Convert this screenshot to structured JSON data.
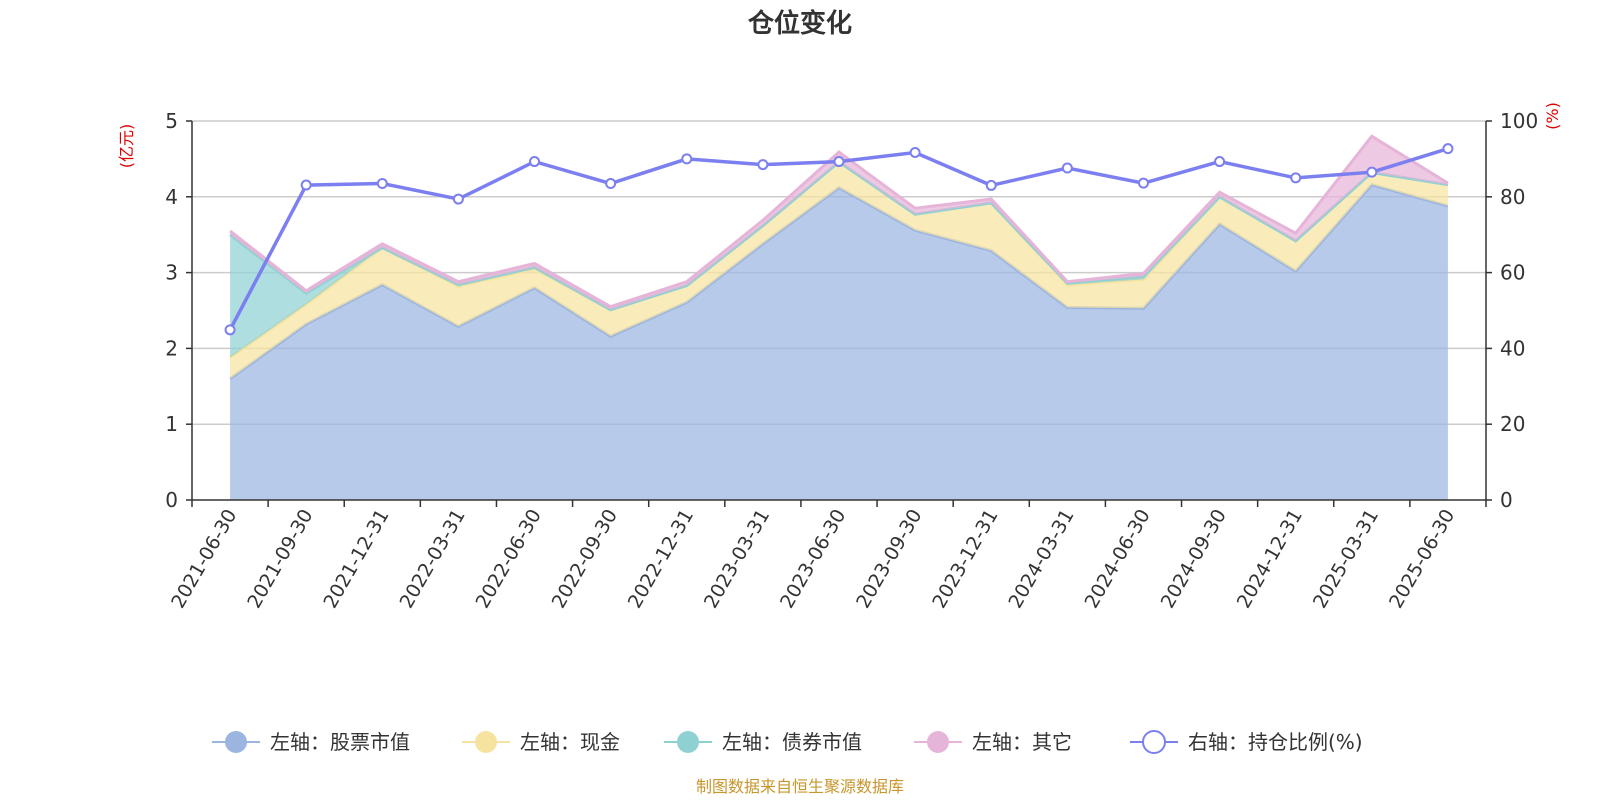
{
  "chart_data": {
    "type": "area",
    "title": "仓位变化",
    "x": [
      "2021-06-30",
      "2021-09-30",
      "2021-12-31",
      "2022-03-31",
      "2022-06-30",
      "2022-09-30",
      "2022-12-31",
      "2023-03-31",
      "2023-06-30",
      "2023-09-30",
      "2023-12-31",
      "2024-03-31",
      "2024-06-30",
      "2024-09-30",
      "2024-12-31",
      "2025-03-31",
      "2025-06-30"
    ],
    "left_axis": {
      "unit": "(亿元)",
      "ylim": [
        0,
        5
      ],
      "ticks": [
        "0",
        "1",
        "2",
        "3",
        "4",
        "5"
      ]
    },
    "right_axis": {
      "unit": "(%)",
      "ylim": [
        0,
        100
      ],
      "ticks": [
        "0",
        "20",
        "40",
        "60",
        "80",
        "100"
      ]
    },
    "series": [
      {
        "name": "左轴：股票市值",
        "axis": "left",
        "stack": true,
        "color": "#9bb5e0",
        "values": [
          1.6,
          2.32,
          2.84,
          2.29,
          2.8,
          2.16,
          2.61,
          3.38,
          4.12,
          3.56,
          3.29,
          2.54,
          2.53,
          3.64,
          3.02,
          4.16,
          3.88
        ]
      },
      {
        "name": "左轴：现金",
        "axis": "left",
        "stack": true,
        "color": "#f7e3a0",
        "values": [
          0.28,
          0.26,
          0.49,
          0.53,
          0.25,
          0.35,
          0.22,
          0.24,
          0.34,
          0.21,
          0.63,
          0.3,
          0.38,
          0.36,
          0.4,
          0.16,
          0.28
        ]
      },
      {
        "name": "左轴：债券市值",
        "axis": "left",
        "stack": true,
        "color": "#8fd1d3",
        "values": [
          1.62,
          0.15,
          0.0,
          0.02,
          0.02,
          0.0,
          0.0,
          0.0,
          0.0,
          0.0,
          0.0,
          0.02,
          0.04,
          0.0,
          0.0,
          0.0,
          0.0
        ]
      },
      {
        "name": "左轴：其它",
        "axis": "left",
        "stack": true,
        "color": "#e6b4d8",
        "values": [
          0.05,
          0.03,
          0.05,
          0.04,
          0.05,
          0.04,
          0.05,
          0.07,
          0.13,
          0.08,
          0.05,
          0.02,
          0.04,
          0.06,
          0.1,
          0.48,
          0.02
        ]
      },
      {
        "name": "右轴：持仓比例(%)",
        "axis": "right",
        "stack": false,
        "color": "#7b7ff0",
        "values": [
          44.9,
          83.1,
          83.5,
          79.4,
          89.3,
          83.5,
          90.0,
          88.5,
          89.3,
          91.7,
          83.0,
          87.6,
          83.6,
          89.3,
          85.0,
          86.5,
          92.7
        ]
      }
    ],
    "grid": true,
    "legend_position": "bottom",
    "source_note": "制图数据来自恒生聚源数据库"
  }
}
